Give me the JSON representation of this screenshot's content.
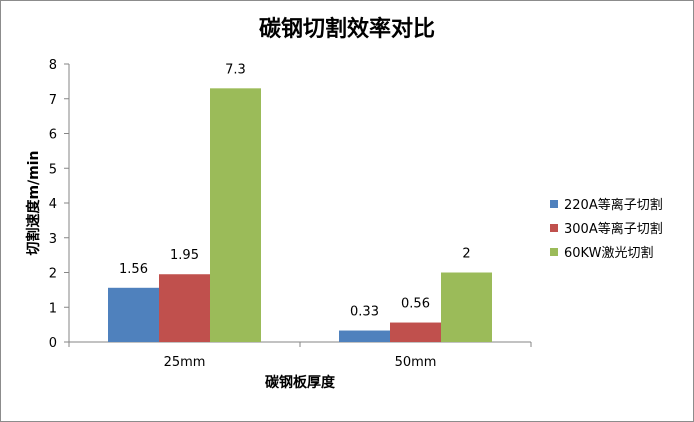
{
  "chart_data": {
    "type": "bar",
    "title": "碳钢切割效率对比",
    "xlabel": "碳钢板厚度",
    "ylabel": "切割速度m/min",
    "categories": [
      "25mm",
      "50mm"
    ],
    "ylim": [
      0,
      8
    ],
    "yticks": [
      "0",
      "1",
      "2",
      "3",
      "4",
      "5",
      "6",
      "7",
      "8"
    ],
    "grid": false,
    "legend_position": "right",
    "series": [
      {
        "name": "220A等离子切割",
        "color": "#4f81bd",
        "values": [
          1.56,
          0.33
        ],
        "labels": [
          "1.56",
          "0.33"
        ]
      },
      {
        "name": "300A等离子切割",
        "color": "#c0504d",
        "values": [
          1.95,
          0.56
        ],
        "labels": [
          "1.95",
          "0.56"
        ]
      },
      {
        "name": "60KW激光切割",
        "color": "#9bbb59",
        "values": [
          7.3,
          2
        ],
        "labels": [
          "7.3",
          "2"
        ]
      }
    ]
  }
}
